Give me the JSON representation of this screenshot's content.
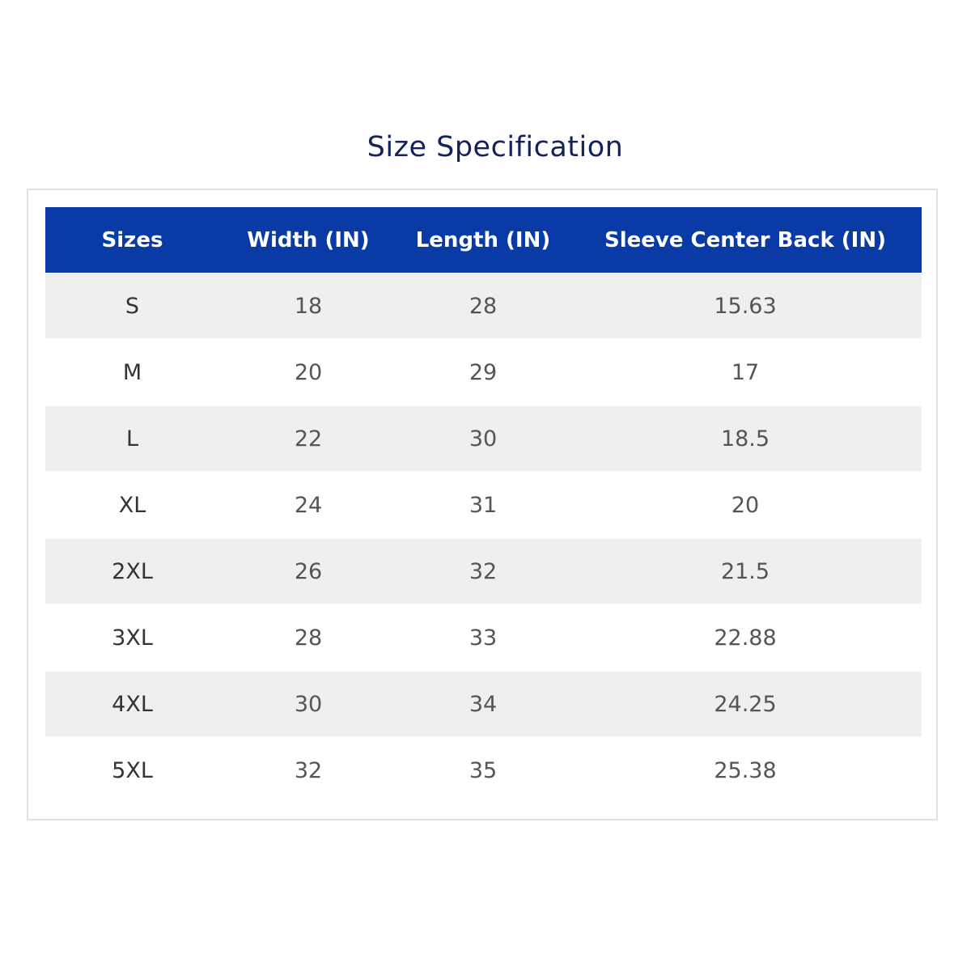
{
  "title": "Size Specification",
  "colors": {
    "header_bg": "#0a3aa6",
    "title": "#14225a",
    "stripe": "#efefef"
  },
  "table": {
    "headers": [
      "Sizes",
      "Width (IN)",
      "Length (IN)",
      "Sleeve Center Back (IN)"
    ],
    "rows": [
      [
        "S",
        "18",
        "28",
        "15.63"
      ],
      [
        "M",
        "20",
        "29",
        "17"
      ],
      [
        "L",
        "22",
        "30",
        "18.5"
      ],
      [
        "XL",
        "24",
        "31",
        "20"
      ],
      [
        "2XL",
        "26",
        "32",
        "21.5"
      ],
      [
        "3XL",
        "28",
        "33",
        "22.88"
      ],
      [
        "4XL",
        "30",
        "34",
        "24.25"
      ],
      [
        "5XL",
        "32",
        "35",
        "25.38"
      ]
    ]
  }
}
